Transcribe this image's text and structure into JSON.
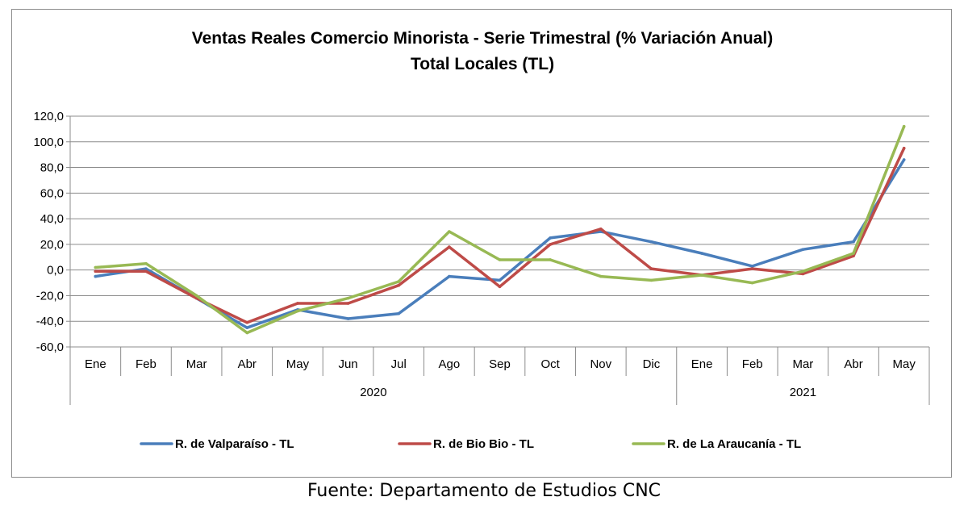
{
  "chart_data": {
    "type": "line",
    "title": "Ventas Reales Comercio Minorista - Serie Trimestral (% Variación Anual)",
    "subtitle": "Total Locales (TL)",
    "categories": [
      "Ene",
      "Feb",
      "Mar",
      "Abr",
      "May",
      "Jun",
      "Jul",
      "Ago",
      "Sep",
      "Oct",
      "Nov",
      "Dic",
      "Ene",
      "Feb",
      "Mar",
      "Abr",
      "May"
    ],
    "groups": [
      {
        "label": "2020",
        "start": 0,
        "end": 11
      },
      {
        "label": "2021",
        "start": 12,
        "end": 16
      }
    ],
    "ylim": [
      -60,
      120
    ],
    "yticks": [
      -60,
      -40,
      -20,
      0,
      20,
      40,
      60,
      80,
      100,
      120
    ],
    "ytick_labels": [
      "-60,0",
      "-40,0",
      "-20,0",
      "0,0",
      "20,0",
      "40,0",
      "60,0",
      "80,0",
      "100,0",
      "120,0"
    ],
    "grid": "horizontal",
    "legend_position": "bottom",
    "series": [
      {
        "name": "R. de Valparaíso - TL",
        "color": "#4a7ebb",
        "values": [
          -5,
          1,
          -22,
          -45,
          -31,
          -38,
          -34,
          -5,
          -8,
          25,
          30,
          22,
          13,
          3,
          16,
          22,
          86
        ]
      },
      {
        "name": "R. de Bio Bio - TL",
        "color": "#be4b48",
        "values": [
          -1,
          -1,
          -22,
          -41,
          -26,
          -26,
          -12,
          18,
          -13,
          20,
          32,
          1,
          -4,
          1,
          -3,
          11,
          95
        ]
      },
      {
        "name": "R. de La Araucanía - TL",
        "color": "#98b954",
        "values": [
          2,
          5,
          -20,
          -49,
          -32,
          -22,
          -9,
          30,
          8,
          8,
          -5,
          -8,
          -4,
          -10,
          -1,
          13,
          112
        ]
      }
    ]
  },
  "footer": {
    "source": "Fuente: Departamento de Estudios CNC"
  }
}
